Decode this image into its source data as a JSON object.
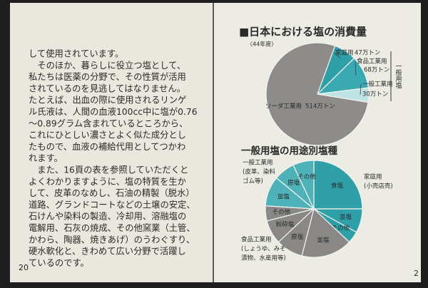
{
  "left_page": {
    "lines": [
      "して使用されています。",
      "　そのほか、暮らしに役立つ塩として、",
      "私たちは医薬の分野で、その性質が活用",
      "されているのを見逃してはなりません。",
      "たとえば、出血の際に使用されるリンゲ",
      "ル氏液は、人間の血液100cc中に塩が0.76",
      "～0.89グラム含まれているところから、",
      "これにひとしい濃さとよく似た成分とし",
      "たもので、血液の補給代用としてつかわ",
      "れます。",
      "　また、16頁の表を参照していただくと",
      "よくわかりますように、塩の特質を生か",
      "して、皮革のなめし、石油の精製（脱水）",
      "道路、グランドコートなどの土壌の安定、",
      "石けんや染料の製造、冷却用、溶融塩の",
      "電解用、石灰の焼成、その他窯業（土管、",
      "かわら、陶器、焼きあげ）のうわぐすり、",
      "硬水軟化と、きわめて広い分野で活躍し",
      "ているのです。"
    ],
    "page_number": "20"
  },
  "right_page": {
    "page_number": "2"
  },
  "chart_data": [
    {
      "type": "pie",
      "title": "■日本における塩の消費量",
      "subtitle": "〈44年度〉",
      "categories": [
        "家庭用",
        "食品工業用",
        "一般工業用",
        "ソーダ工業用"
      ],
      "values": [
        47,
        68,
        30,
        514
      ],
      "value_labels": [
        "47万トン",
        "68万トン",
        "30万トン",
        "514万トン"
      ],
      "colors": [
        "#2f9fa8",
        "#3aa9b1",
        "#bfe2e4",
        "#8e8c8a"
      ],
      "annotation": "一般用塩"
    },
    {
      "type": "pie",
      "title": "一般用塩の用途別塩種",
      "categories": [
        "食塩",
        "並塩",
        "その他",
        "並塩",
        "原塩",
        "粉砕塩",
        "その他",
        "並塩",
        "原塩",
        "その他"
      ],
      "values": [
        25,
        8,
        4,
        17,
        9,
        8,
        5,
        10,
        7,
        7
      ],
      "colors": [
        "#2f9fa8",
        "#2f9fa8",
        "#2f9fa8",
        "#8a8886",
        "#8a8886",
        "#8a8886",
        "#8a8886",
        "#4fb2b8",
        "#4fb2b8",
        "#4fb2b8"
      ],
      "groups": [
        {
          "lines": [
            "家庭用",
            "(小売店売)"
          ]
        },
        {
          "lines": [
            "食品工業用",
            "(しょうゆ、みそ",
            "漬物、水産用等)"
          ]
        },
        {
          "lines": [
            "一般工業用",
            "(皮革、染料",
            "ゴム等)"
          ]
        }
      ]
    }
  ]
}
